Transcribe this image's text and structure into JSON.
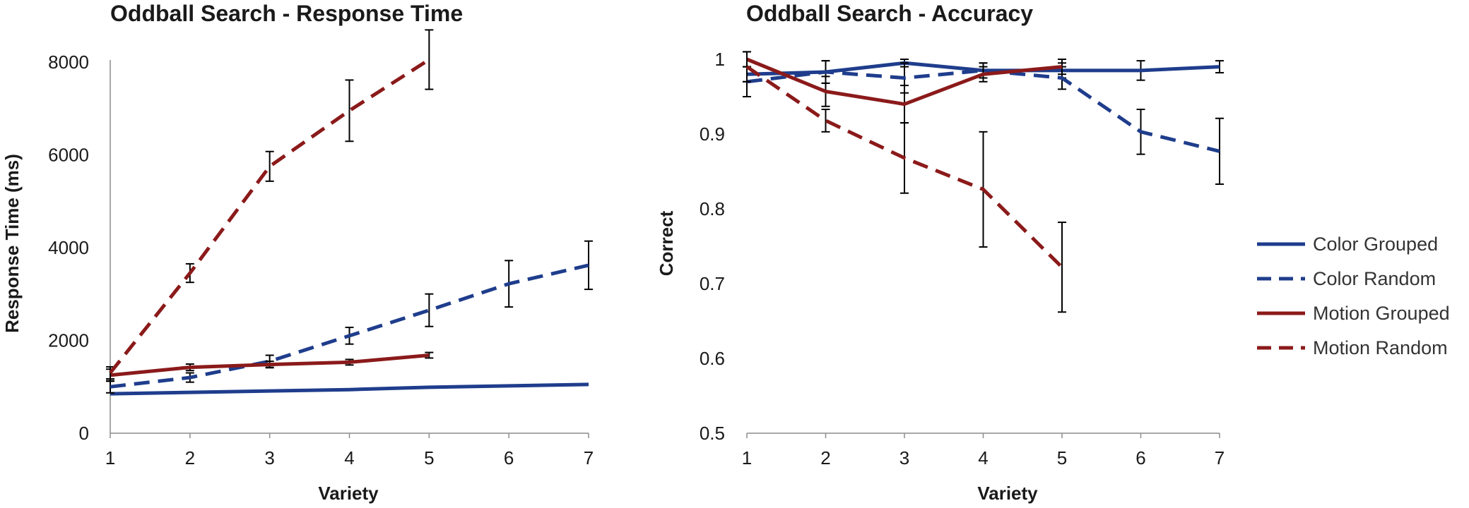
{
  "chart_data": [
    {
      "type": "line",
      "title": "Oddball Search - Response Time",
      "xlabel": "Variety",
      "ylabel": "Response Time (ms)",
      "x": [
        1,
        2,
        3,
        4,
        5,
        6,
        7
      ],
      "xlim": [
        1,
        7
      ],
      "ylim": [
        0,
        9000
      ],
      "yticks": [
        0,
        2000,
        4000,
        6000,
        8000
      ],
      "ytick_labels": [
        "0",
        "2000",
        "4000",
        "6000",
        "8000"
      ],
      "grid": false,
      "series": [
        {
          "name": "Color Grouped",
          "color": "#1f3d8c",
          "dash": false,
          "values": [
            850,
            880,
            910,
            940,
            990,
            1020,
            1050
          ],
          "error": null
        },
        {
          "name": "Color Random",
          "color": "#1f3d8c",
          "dash": true,
          "values": [
            1000,
            1200,
            1550,
            2100,
            2650,
            3220,
            3620
          ],
          "error": [
            130,
            100,
            130,
            180,
            350,
            500,
            520
          ]
        },
        {
          "name": "Motion Grouped",
          "color": "#8b1a1a",
          "dash": false,
          "values": [
            1250,
            1420,
            1480,
            1530,
            1680,
            null,
            null
          ],
          "error": [
            130,
            70,
            70,
            60,
            60,
            null,
            null
          ]
        },
        {
          "name": "Motion Random",
          "color": "#8b1a1a",
          "dash": true,
          "values": [
            1300,
            3450,
            5750,
            6950,
            8050,
            null,
            null
          ],
          "error": [
            130,
            200,
            320,
            660,
            640,
            null,
            null
          ]
        }
      ]
    },
    {
      "type": "line",
      "title": "Oddball Search - Accuracy",
      "xlabel": "Variety",
      "ylabel": "Correct",
      "x": [
        1,
        2,
        3,
        4,
        5,
        6,
        7
      ],
      "xlim": [
        1,
        7
      ],
      "ylim": [
        0.5,
        1
      ],
      "yticks": [
        0.5,
        0.6,
        0.7,
        0.8,
        0.9,
        1
      ],
      "ytick_labels": [
        "0.5",
        "0.6",
        "0.7",
        "0.8",
        "0.9",
        "1"
      ],
      "grid": false,
      "legend_position": "right",
      "series": [
        {
          "name": "Color Grouped",
          "color": "#1f3d8c",
          "dash": false,
          "values": [
            0.98,
            0.983,
            0.995,
            0.985,
            0.985,
            0.985,
            0.99
          ],
          "error": [
            0.01,
            0.015,
            0.005,
            0.01,
            0.01,
            0.013,
            0.008
          ]
        },
        {
          "name": "Color Random",
          "color": "#1f3d8c",
          "dash": true,
          "values": [
            0.97,
            0.983,
            0.975,
            0.985,
            0.975,
            0.903,
            0.877
          ],
          "error": [
            0.02,
            0.015,
            0.02,
            0.01,
            0.015,
            0.03,
            0.044
          ]
        },
        {
          "name": "Motion Grouped",
          "color": "#8b1a1a",
          "dash": false,
          "values": [
            1.0,
            0.957,
            0.94,
            0.98,
            0.99,
            null,
            null
          ],
          "error": [
            0.01,
            0.02,
            0.025,
            0.01,
            0.01,
            null,
            null
          ]
        },
        {
          "name": "Motion Random",
          "color": "#8b1a1a",
          "dash": true,
          "values": [
            0.99,
            0.918,
            0.868,
            0.826,
            0.722,
            null,
            null
          ],
          "error": [
            0.02,
            0.015,
            0.047,
            0.077,
            0.06,
            null,
            null
          ]
        }
      ]
    }
  ]
}
